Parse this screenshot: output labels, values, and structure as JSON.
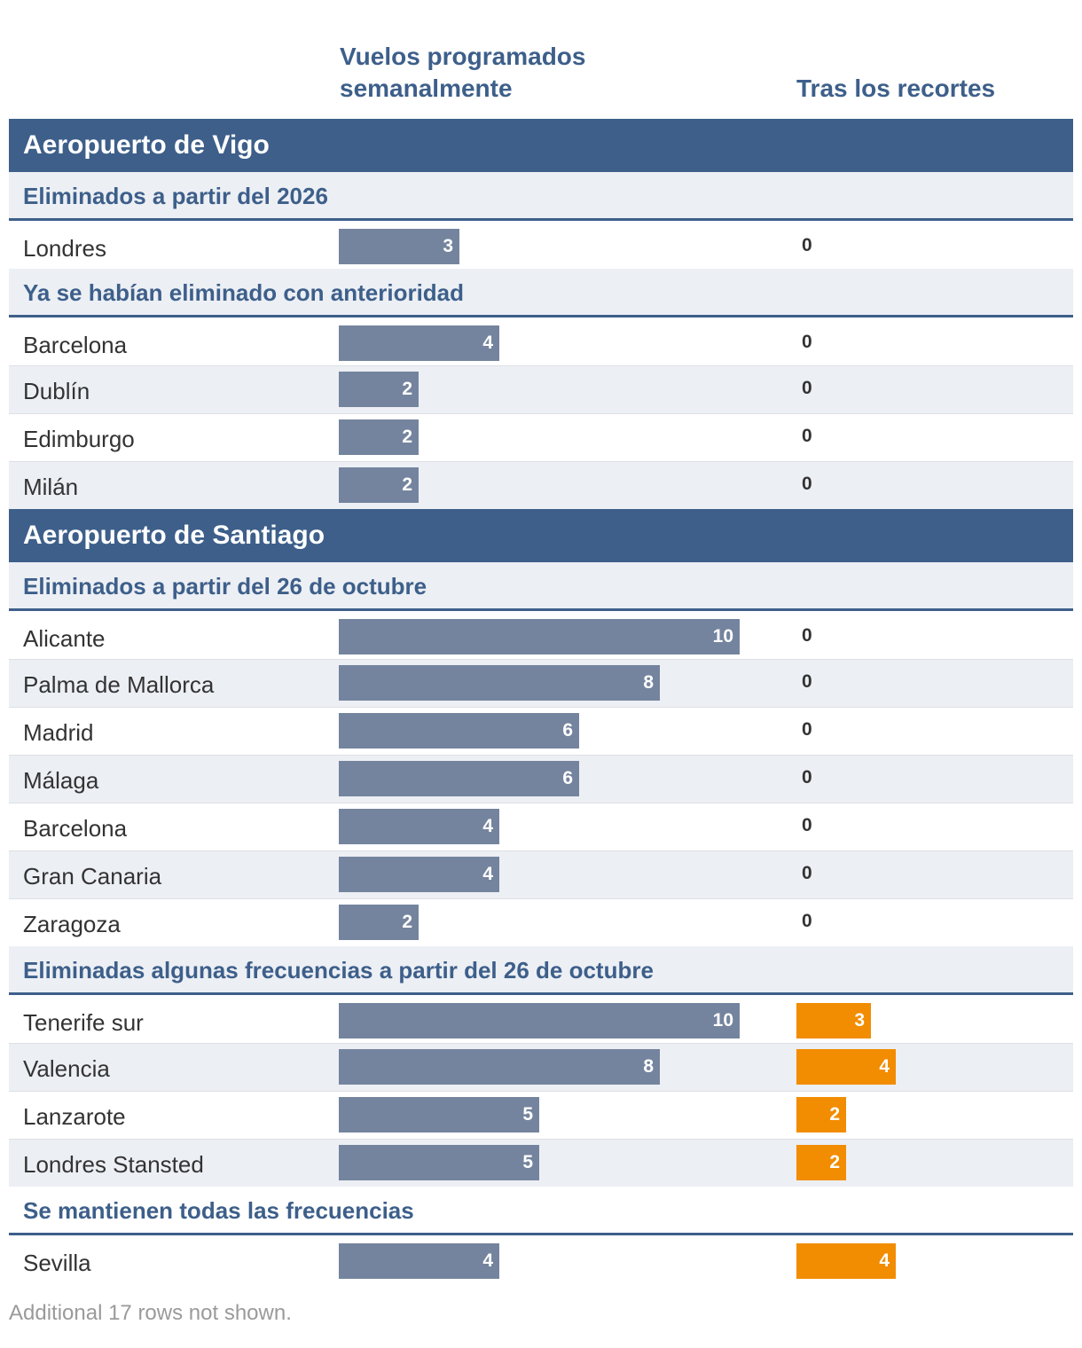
{
  "headers": {
    "before": "Vuelos programados semanalmente",
    "after": "Tras los recortes"
  },
  "chart_data": {
    "type": "bar",
    "series_names": [
      "Vuelos programados semanalmente",
      "Tras los recortes"
    ],
    "xlim": [
      0,
      10
    ],
    "sections": [
      {
        "title": "Aeropuerto de Vigo",
        "groups": [
          {
            "title": "Eliminados a partir del 2026",
            "rows": [
              {
                "city": "Londres",
                "before": 3,
                "after": 0
              }
            ]
          },
          {
            "title": "Ya se habían eliminado con anterioridad",
            "rows": [
              {
                "city": "Barcelona",
                "before": 4,
                "after": 0
              },
              {
                "city": "Dublín",
                "before": 2,
                "after": 0
              },
              {
                "city": "Edimburgo",
                "before": 2,
                "after": 0
              },
              {
                "city": "Milán",
                "before": 2,
                "after": 0
              }
            ]
          }
        ]
      },
      {
        "title": "Aeropuerto de Santiago",
        "groups": [
          {
            "title": "Eliminados a partir del 26 de octubre",
            "rows": [
              {
                "city": "Alicante",
                "before": 10,
                "after": 0
              },
              {
                "city": "Palma de Mallorca",
                "before": 8,
                "after": 0
              },
              {
                "city": "Madrid",
                "before": 6,
                "after": 0
              },
              {
                "city": "Málaga",
                "before": 6,
                "after": 0
              },
              {
                "city": "Barcelona",
                "before": 4,
                "after": 0
              },
              {
                "city": "Gran Canaria",
                "before": 4,
                "after": 0
              },
              {
                "city": "Zaragoza",
                "before": 2,
                "after": 0
              }
            ]
          },
          {
            "title": "Eliminadas algunas frecuencias a partir del 26 de octubre",
            "rows": [
              {
                "city": "Tenerife sur",
                "before": 10,
                "after": 3
              },
              {
                "city": "Valencia",
                "before": 8,
                "after": 4
              },
              {
                "city": "Lanzarote",
                "before": 5,
                "after": 2
              },
              {
                "city": "Londres Stansted",
                "before": 5,
                "after": 2
              }
            ]
          },
          {
            "title": "Se mantienen todas las frecuencias",
            "rows": [
              {
                "city": "Sevilla",
                "before": 4,
                "after": 4
              }
            ]
          }
        ]
      }
    ]
  },
  "colors": {
    "header": "#3d5f8a",
    "bar_before": "#74849e",
    "bar_after": "#f28c00",
    "row_alt": "#eceff4"
  },
  "footnote": "Additional 17 rows not shown."
}
